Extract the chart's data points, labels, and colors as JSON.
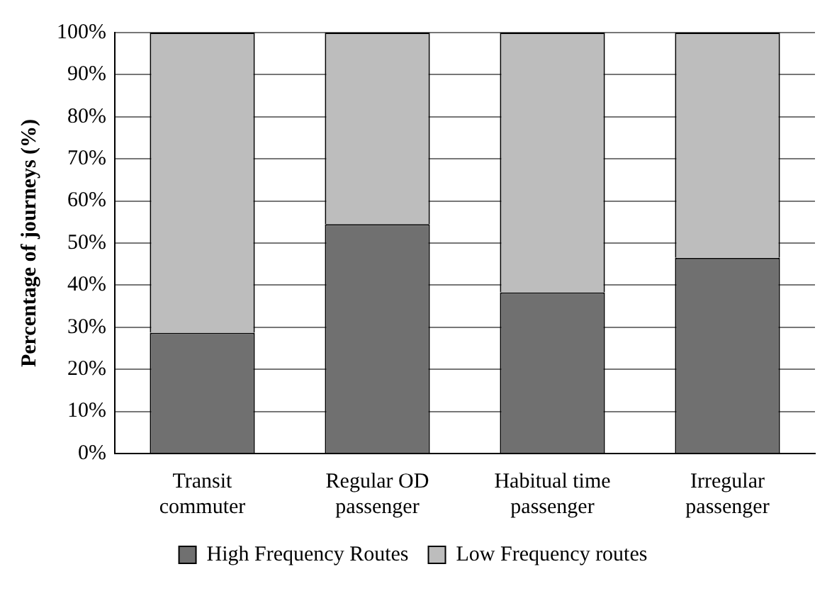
{
  "chart_data": {
    "type": "bar",
    "stacked": true,
    "ylabel": "Percentage of journeys (%)",
    "categories": [
      "Transit commuter",
      "Regular OD passenger",
      "Habitual time passenger",
      "Irregular passenger"
    ],
    "series": [
      {
        "name": "High Frequency Routes",
        "color": "#707070",
        "values": [
          28.7,
          54.5,
          38.3,
          46.5
        ]
      },
      {
        "name": "Low Frequency routes",
        "color": "#bdbdbd",
        "values": [
          71.3,
          45.5,
          61.7,
          53.5
        ]
      }
    ],
    "ylim": [
      0,
      100
    ],
    "yticks": [
      {
        "value": 0,
        "label": "0%"
      },
      {
        "value": 10,
        "label": "10%"
      },
      {
        "value": 20,
        "label": "20%"
      },
      {
        "value": 30,
        "label": "30%"
      },
      {
        "value": 40,
        "label": "40%"
      },
      {
        "value": 50,
        "label": "50%"
      },
      {
        "value": 60,
        "label": "60%"
      },
      {
        "value": 70,
        "label": "70%"
      },
      {
        "value": 80,
        "label": "80%"
      },
      {
        "value": 90,
        "label": "90%"
      },
      {
        "value": 100,
        "label": "100%"
      }
    ],
    "grid": "y",
    "legend": "bottom"
  }
}
